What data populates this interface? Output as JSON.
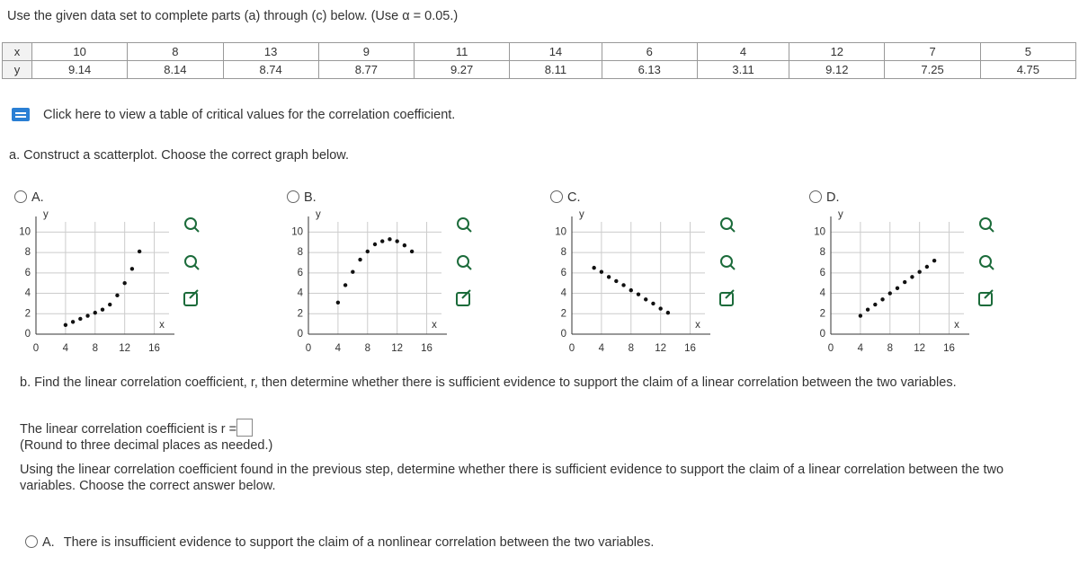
{
  "instructions": "Use the given data set to complete parts (a) through (c) below. (Use α = 0.05.)",
  "table": {
    "rows": [
      [
        "x",
        10,
        8,
        13,
        9,
        11,
        14,
        6,
        4,
        12,
        7,
        5
      ],
      [
        "y",
        9.14,
        8.14,
        8.74,
        8.77,
        9.27,
        8.11,
        6.13,
        3.11,
        9.12,
        7.25,
        4.75
      ]
    ]
  },
  "link": "Click here to view a table of critical values for the correlation coefficient.",
  "part_a": "a. Construct a scatterplot. Choose the correct graph below.",
  "options": [
    {
      "label": "A.",
      "chart": {
        "type": "scatter",
        "x_label": "x",
        "y_label": "y",
        "xlim": [
          0,
          18
        ],
        "ylim": [
          0,
          11
        ],
        "xticks": [
          0,
          4,
          8,
          12,
          16
        ],
        "yticks": [
          0,
          2,
          4,
          6,
          8,
          10
        ],
        "color": "#111111",
        "x": [
          4,
          5,
          6,
          7,
          8,
          9,
          10,
          11,
          12,
          13,
          14
        ],
        "y": [
          0.9,
          1.2,
          1.5,
          1.8,
          2.1,
          2.4,
          2.9,
          3.8,
          5.0,
          6.4,
          8.1
        ]
      }
    },
    {
      "label": "B.",
      "chart": {
        "type": "scatter",
        "x_label": "x",
        "y_label": "y",
        "xlim": [
          0,
          18
        ],
        "ylim": [
          0,
          11
        ],
        "xticks": [
          0,
          4,
          8,
          12,
          16
        ],
        "yticks": [
          0,
          2,
          4,
          6,
          8,
          10
        ],
        "color": "#111111",
        "x": [
          4,
          5,
          6,
          7,
          8,
          9,
          10,
          11,
          12,
          13,
          14
        ],
        "y": [
          3.1,
          4.8,
          6.1,
          7.3,
          8.1,
          8.8,
          9.1,
          9.3,
          9.1,
          8.7,
          8.1
        ]
      }
    },
    {
      "label": "C.",
      "chart": {
        "type": "scatter",
        "x_label": "x",
        "y_label": "y",
        "xlim": [
          0,
          18
        ],
        "ylim": [
          0,
          11
        ],
        "xticks": [
          0,
          4,
          8,
          12,
          16
        ],
        "yticks": [
          0,
          2,
          4,
          6,
          8,
          10
        ],
        "color": "#111111",
        "x": [
          3,
          4,
          5,
          6,
          7,
          8,
          9,
          10,
          11,
          12,
          13
        ],
        "y": [
          6.5,
          6.1,
          5.6,
          5.2,
          4.8,
          4.3,
          3.9,
          3.4,
          3.0,
          2.5,
          2.1
        ]
      }
    },
    {
      "label": "D.",
      "chart": {
        "type": "scatter",
        "x_label": "x",
        "y_label": "y",
        "xlim": [
          0,
          18
        ],
        "ylim": [
          0,
          11
        ],
        "xticks": [
          0,
          4,
          8,
          12,
          16
        ],
        "yticks": [
          0,
          2,
          4,
          6,
          8,
          10
        ],
        "color": "#111111",
        "x": [
          4,
          5,
          6,
          7,
          8,
          9,
          10,
          11,
          12,
          13,
          14
        ],
        "y": [
          1.8,
          2.4,
          2.9,
          3.4,
          4.0,
          4.5,
          5.1,
          5.6,
          6.1,
          6.6,
          7.2
        ]
      }
    }
  ],
  "part_b": "b. Find the linear correlation coefficient, r, then determine whether there is sufficient evidence to support the claim of a linear correlation between the two variables.",
  "r_prompt": "The linear correlation coefficient is r =",
  "round_note": "(Round to three decimal places as needed.)",
  "using": "Using the linear correlation coefficient found in the previous step, determine whether there is sufficient evidence to support the claim of a linear correlation between the two variables. Choose the correct answer below.",
  "answer_a": {
    "label": "A.",
    "text": "There is insufficient evidence to support the claim of a nonlinear correlation between the two variables."
  }
}
